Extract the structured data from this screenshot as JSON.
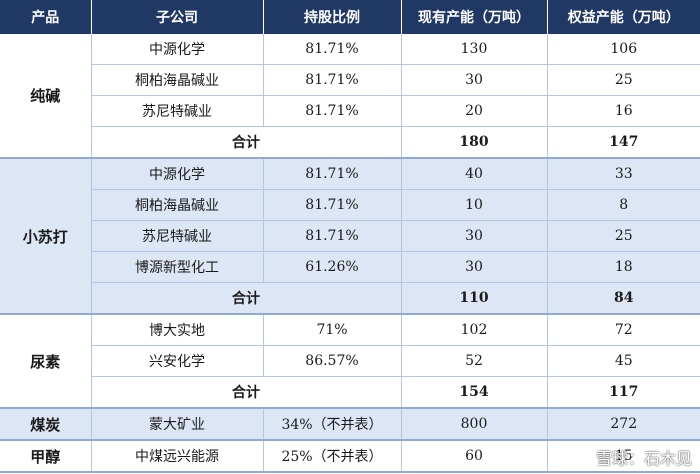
{
  "headers": [
    "产品",
    "子公司",
    "持股比例",
    "现有产能（万吨）",
    "权益产能（万吨）"
  ],
  "groups": {
    "soda_ash": {
      "product": "纯碱",
      "rows": [
        {
          "company": "中源化学",
          "share": "81.71%",
          "capacity": "130",
          "equity": "106"
        },
        {
          "company": "桐柏海晶碱业",
          "share": "81.71%",
          "capacity": "30",
          "equity": "25"
        },
        {
          "company": "苏尼特碱业",
          "share": "81.71%",
          "capacity": "20",
          "equity": "16"
        }
      ],
      "total": {
        "label": "合计",
        "capacity": "180",
        "equity": "147"
      }
    },
    "baking_soda": {
      "product": "小苏打",
      "rows": [
        {
          "company": "中源化学",
          "share": "81.71%",
          "capacity": "40",
          "equity": "33"
        },
        {
          "company": "桐柏海晶碱业",
          "share": "81.71%",
          "capacity": "10",
          "equity": "8"
        },
        {
          "company": "苏尼特碱业",
          "share": "81.71%",
          "capacity": "30",
          "equity": "25"
        },
        {
          "company": "博源新型化工",
          "share": "61.26%",
          "capacity": "30",
          "equity": "18"
        }
      ],
      "total": {
        "label": "合计",
        "capacity": "110",
        "equity": "84"
      }
    },
    "urea": {
      "product": "尿素",
      "rows": [
        {
          "company": "博大实地",
          "share": "71%",
          "capacity": "102",
          "equity": "72"
        },
        {
          "company": "兴安化学",
          "share": "86.57%",
          "capacity": "52",
          "equity": "45"
        }
      ],
      "total": {
        "label": "合计",
        "capacity": "154",
        "equity": "117"
      }
    },
    "coal": {
      "product": "煤炭",
      "rows": [
        {
          "company": "蒙大矿业",
          "share": "34%（不并表）",
          "capacity": "800",
          "equity": "272"
        }
      ]
    },
    "methanol": {
      "product": "甲醇",
      "rows": [
        {
          "company": "中煤远兴能源",
          "share": "25%（不并表）",
          "capacity": "60",
          "equity": "15"
        }
      ]
    }
  },
  "watermark": {
    "text": "雪球：石木见",
    "icon": "snowball-logo-icon"
  }
}
